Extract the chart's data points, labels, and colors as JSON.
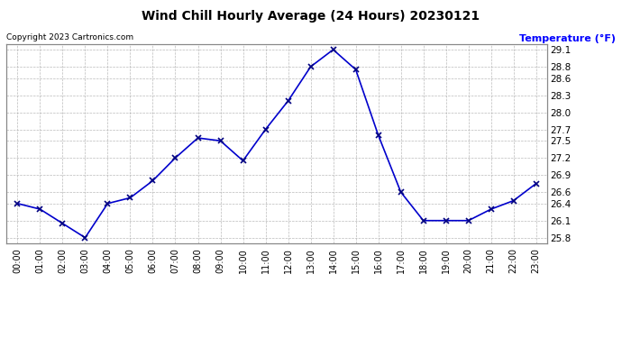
{
  "title": "Wind Chill Hourly Average (24 Hours) 20230121",
  "copyright": "Copyright 2023 Cartronics.com",
  "ylabel": "Temperature (°F)",
  "hours": [
    "00:00",
    "01:00",
    "02:00",
    "03:00",
    "04:00",
    "05:00",
    "06:00",
    "07:00",
    "08:00",
    "09:00",
    "10:00",
    "11:00",
    "12:00",
    "13:00",
    "14:00",
    "15:00",
    "16:00",
    "17:00",
    "18:00",
    "19:00",
    "20:00",
    "21:00",
    "22:00",
    "23:00"
  ],
  "values": [
    26.4,
    26.3,
    26.05,
    25.8,
    26.4,
    26.5,
    26.8,
    27.2,
    27.55,
    27.5,
    27.15,
    27.7,
    28.2,
    28.8,
    29.1,
    28.75,
    27.6,
    26.6,
    26.1,
    26.1,
    26.1,
    26.3,
    26.45,
    26.75
  ],
  "line_color": "#0000cc",
  "marker": "x",
  "marker_color": "#000080",
  "bg_color": "#ffffff",
  "grid_color": "#aaaaaa",
  "title_color": "#000000",
  "copyright_color": "#000000",
  "ylabel_color": "#0000ff",
  "ylim_min": 25.7,
  "ylim_max": 29.2,
  "yticks": [
    25.8,
    26.1,
    26.4,
    26.6,
    26.9,
    27.2,
    27.5,
    27.7,
    28.0,
    28.3,
    28.6,
    28.8,
    29.1
  ]
}
